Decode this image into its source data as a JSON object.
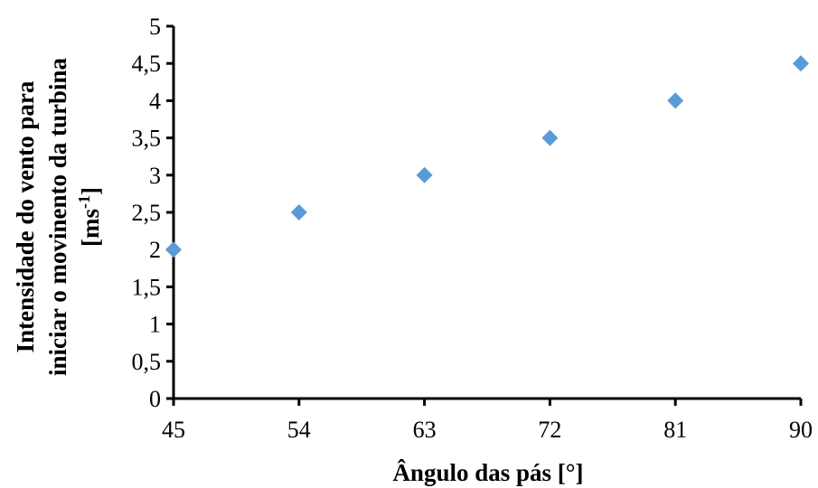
{
  "chart_data": {
    "type": "scatter",
    "x": [
      45,
      54,
      63,
      72,
      81,
      90
    ],
    "y": [
      2,
      2.5,
      3,
      3.5,
      4,
      4.5
    ],
    "xlim": [
      45,
      90
    ],
    "ylim": [
      0,
      5
    ],
    "x_ticks": [
      "45",
      "54",
      "63",
      "72",
      "81",
      "90"
    ],
    "y_ticks": [
      "0",
      "0,5",
      "1",
      "1,5",
      "2",
      "2,5",
      "3",
      "3,5",
      "4",
      "4,5",
      "5"
    ],
    "xlabel": "Ângulo das pás [°]",
    "ylabel_line1": "Intensidade do vento para",
    "ylabel_line2": "iniciar o movinento da turbina",
    "ylabel_unit_prefix": "[ms",
    "ylabel_unit_exp": "-1",
    "ylabel_unit_suffix": "]",
    "grid": false,
    "marker": "diamond",
    "marker_color": "#5B9BD5"
  }
}
